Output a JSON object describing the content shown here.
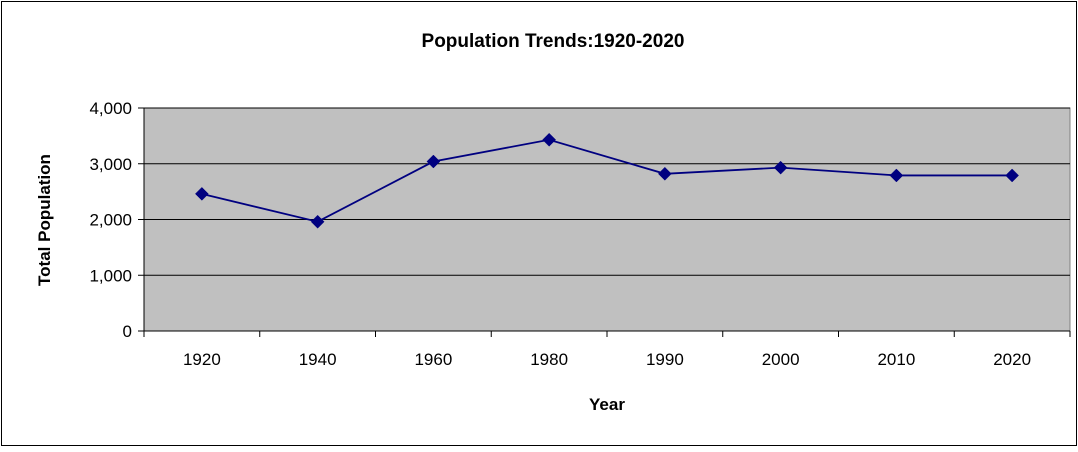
{
  "chart_data": {
    "type": "line",
    "title": "Population Trends:1920-2020",
    "xlabel": "Year",
    "ylabel": "Total Population",
    "categories": [
      "1920",
      "1940",
      "1960",
      "1980",
      "1990",
      "2000",
      "2010",
      "2020"
    ],
    "series": [
      {
        "values": [
          2460,
          1960,
          3040,
          3430,
          2820,
          2930,
          2790,
          2790
        ]
      }
    ],
    "ylim": [
      0,
      4000
    ],
    "yticks": [
      0,
      1000,
      2000,
      3000,
      4000
    ],
    "ytick_labels": [
      "0",
      "1,000",
      "2,000",
      "3,000",
      "4,000"
    ],
    "grid": "horizontal",
    "legend": "none",
    "colors": {
      "plot_background": "#c0c0c0",
      "line": "#000080",
      "marker": "#000080",
      "gridline": "#000000"
    },
    "marker": "diamond-icon"
  }
}
